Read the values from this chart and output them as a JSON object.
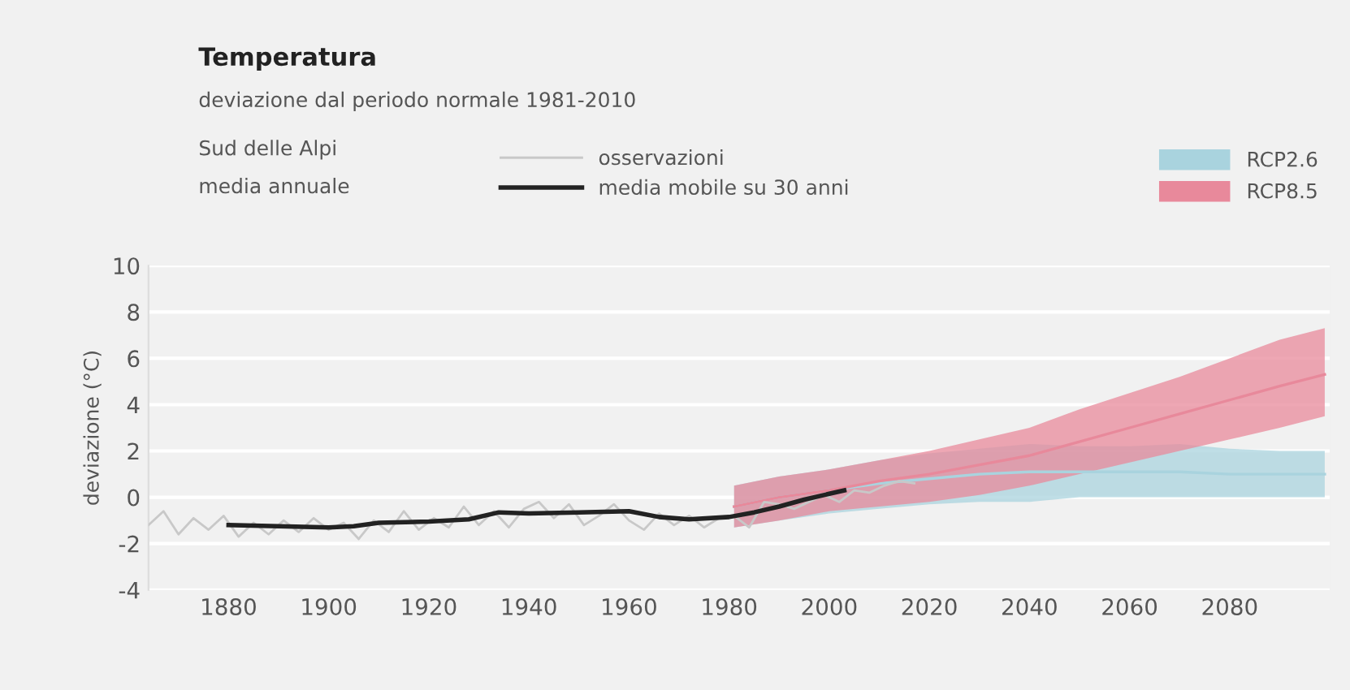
{
  "chart_data": {
    "type": "line",
    "title": "Temperatura",
    "subtitle": "deviazione dal periodo normale 1981-2010",
    "ylabel": "deviazione (°C)",
    "annotations": [
      "Sud delle Alpi",
      "media annuale"
    ],
    "xlim": [
      1864,
      2100
    ],
    "xticks": [
      1880,
      1900,
      1920,
      1940,
      1960,
      1980,
      2000,
      2020,
      2040,
      2060,
      2080
    ],
    "ylim": [
      -4,
      10
    ],
    "yticks": [
      -4,
      -2,
      0,
      2,
      4,
      6,
      8,
      10
    ],
    "grid": "y",
    "legend": "top",
    "series": [
      {
        "name": "RCP2.6",
        "color": "#a9d3de",
        "x": [
          1981,
          1990,
          2000,
          2010,
          2020,
          2030,
          2040,
          2050,
          2060,
          2070,
          2080,
          2090,
          2099
        ],
        "values": [
          -0.4,
          0,
          0.3,
          0.6,
          0.8,
          1,
          1.1,
          1.1,
          1.1,
          1.1,
          1,
          1,
          1
        ],
        "lower": [
          -1.3,
          -1,
          -0.7,
          -0.5,
          -0.3,
          -0.2,
          -0.2,
          0,
          0,
          0,
          0,
          0,
          0
        ],
        "upper": [
          0.5,
          0.9,
          1.2,
          1.6,
          1.9,
          2.1,
          2.3,
          2.2,
          2.2,
          2.3,
          2.1,
          2,
          2
        ]
      },
      {
        "name": "RCP8.5",
        "color": "#e8899b",
        "x": [
          1981,
          1990,
          2000,
          2010,
          2020,
          2030,
          2040,
          2050,
          2060,
          2070,
          2080,
          2090,
          2099
        ],
        "values": [
          -0.4,
          0,
          0.3,
          0.7,
          1,
          1.4,
          1.8,
          2.4,
          3,
          3.6,
          4.2,
          4.8,
          5.3
        ],
        "lower": [
          -1.3,
          -1,
          -0.6,
          -0.4,
          -0.2,
          0.1,
          0.5,
          1,
          1.5,
          2,
          2.5,
          3,
          3.5
        ],
        "upper": [
          0.5,
          0.9,
          1.2,
          1.6,
          2,
          2.5,
          3,
          3.8,
          4.5,
          5.2,
          6,
          6.8,
          7.3
        ]
      },
      {
        "name": "osservazioni",
        "color": "#c8c8c8",
        "x": [
          1864,
          1867,
          1870,
          1873,
          1876,
          1879,
          1882,
          1885,
          1888,
          1891,
          1894,
          1897,
          1900,
          1903,
          1906,
          1909,
          1912,
          1915,
          1918,
          1921,
          1924,
          1927,
          1930,
          1933,
          1936,
          1939,
          1942,
          1945,
          1948,
          1951,
          1954,
          1957,
          1960,
          1963,
          1966,
          1969,
          1972,
          1975,
          1978,
          1981,
          1984,
          1987,
          1990,
          1993,
          1996,
          1999,
          2002,
          2005,
          2008,
          2011,
          2014,
          2017
        ],
        "values": [
          -1.2,
          -0.6,
          -1.6,
          -0.9,
          -1.4,
          -0.8,
          -1.7,
          -1.1,
          -1.6,
          -1,
          -1.5,
          -0.9,
          -1.4,
          -1.1,
          -1.8,
          -1,
          -1.5,
          -0.6,
          -1.4,
          -0.9,
          -1.3,
          -0.4,
          -1.2,
          -0.6,
          -1.3,
          -0.5,
          -0.2,
          -0.9,
          -0.3,
          -1.2,
          -0.8,
          -0.3,
          -1,
          -1.4,
          -0.7,
          -1.2,
          -0.8,
          -1.3,
          -0.9,
          -0.8,
          -1.3,
          -0.2,
          -0.3,
          -0.5,
          -0.2,
          0.1,
          -0.2,
          0.3,
          0.2,
          0.5,
          0.7,
          0.6
        ]
      },
      {
        "name": "media mobile su 30 anni",
        "color": "#222222",
        "x": [
          1880,
          1890,
          1900,
          1905,
          1910,
          1920,
          1928,
          1934,
          1940,
          1950,
          1960,
          1966,
          1972,
          1980,
          1985,
          1990,
          1995,
          2000,
          2003
        ],
        "values": [
          -1.2,
          -1.25,
          -1.3,
          -1.25,
          -1.1,
          -1.05,
          -0.95,
          -0.65,
          -0.7,
          -0.65,
          -0.6,
          -0.85,
          -0.95,
          -0.85,
          -0.65,
          -0.4,
          -0.1,
          0.15,
          0.3
        ]
      }
    ]
  }
}
